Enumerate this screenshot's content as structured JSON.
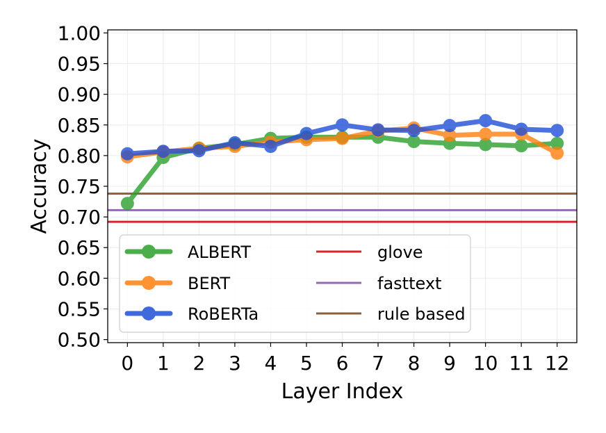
{
  "chart_data": {
    "type": "line",
    "xlabel": "Layer Index",
    "ylabel": "Accuracy",
    "x": [
      0,
      1,
      2,
      3,
      4,
      5,
      6,
      7,
      8,
      9,
      10,
      11,
      12
    ],
    "xticks": [
      "0",
      "1",
      "2",
      "3",
      "4",
      "5",
      "6",
      "7",
      "8",
      "9",
      "10",
      "11",
      "12"
    ],
    "xlim": [
      -0.55,
      12.55
    ],
    "ylim": [
      0.495,
      1.005
    ],
    "yticks": [
      0.5,
      0.55,
      0.6,
      0.65,
      0.7,
      0.75,
      0.8,
      0.85,
      0.9,
      0.95,
      1.0
    ],
    "ytick_labels": [
      "0.50",
      "0.55",
      "0.60",
      "0.65",
      "0.70",
      "0.75",
      "0.80",
      "0.85",
      "0.90",
      "0.95",
      "1.00"
    ],
    "grid": true,
    "legend_position": "lower-left",
    "series": [
      {
        "name": "ALBERT",
        "color": "#2ca02c",
        "values": [
          0.722,
          0.797,
          0.812,
          0.818,
          0.828,
          0.83,
          0.83,
          0.83,
          0.823,
          0.82,
          0.818,
          0.816,
          0.82
        ]
      },
      {
        "name": "BERT",
        "color": "#ff7f0e",
        "values": [
          0.798,
          0.806,
          0.812,
          0.815,
          0.822,
          0.826,
          0.828,
          0.84,
          0.845,
          0.833,
          0.835,
          0.835,
          0.804
        ]
      },
      {
        "name": "RoBERTa",
        "color": "#1f4fd6",
        "values": [
          0.803,
          0.807,
          0.808,
          0.821,
          0.815,
          0.836,
          0.85,
          0.842,
          0.841,
          0.849,
          0.857,
          0.843,
          0.841
        ]
      }
    ],
    "baselines": [
      {
        "name": "glove",
        "color": "#d62728",
        "value": 0.692
      },
      {
        "name": "fasttext",
        "color": "#9467bd",
        "value": 0.711
      },
      {
        "name": "rule based",
        "color": "#8c5e3c",
        "value": 0.738
      }
    ]
  }
}
